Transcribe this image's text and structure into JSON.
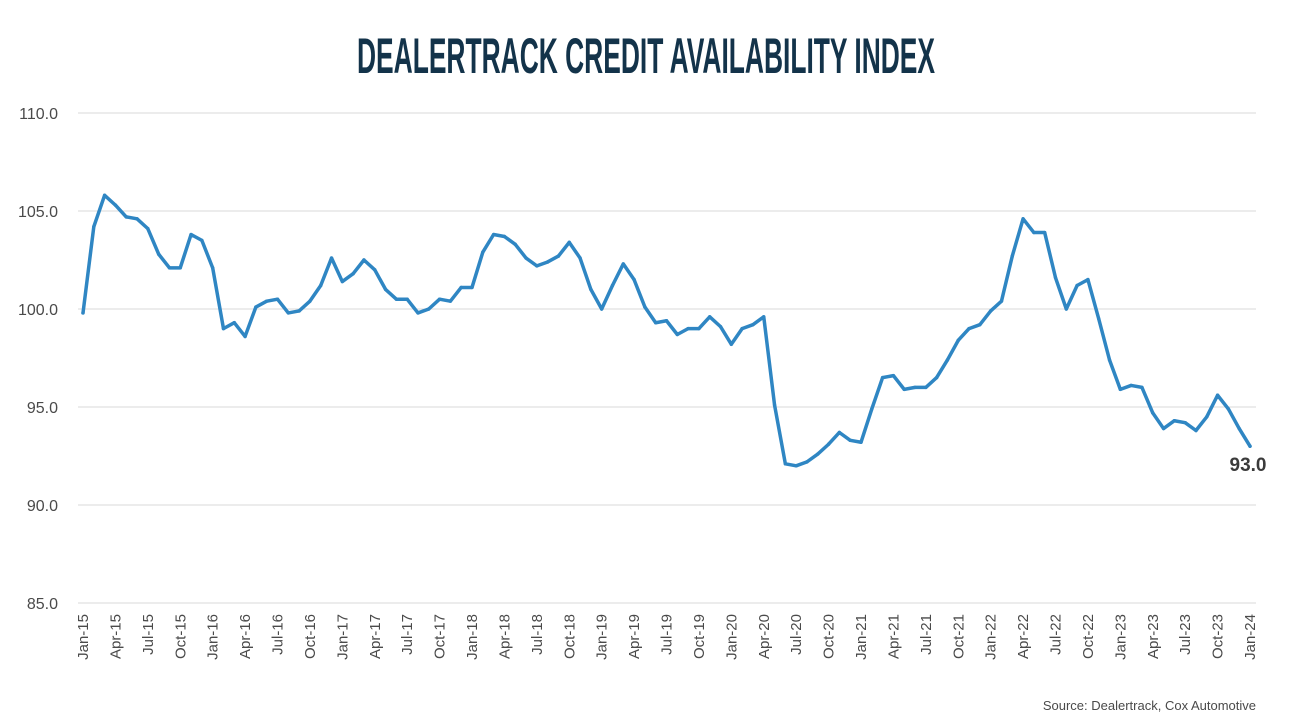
{
  "chart_data": {
    "type": "line",
    "title": "DEALERTRACK CREDIT AVAILABILITY INDEX",
    "source": "Source: Dealertrack, Cox Automotive",
    "end_label": "93.0",
    "ylim": [
      85,
      110
    ],
    "yticks": [
      "85.0",
      "90.0",
      "95.0",
      "100.0",
      "105.0",
      "110.0"
    ],
    "grid": true,
    "line_color": "#2f86c3",
    "x_tick_labels": [
      "Jan-15",
      "Apr-15",
      "Jul-15",
      "Oct-15",
      "Jan-16",
      "Apr-16",
      "Jul-16",
      "Oct-16",
      "Jan-17",
      "Apr-17",
      "Jul-17",
      "Oct-17",
      "Jan-18",
      "Apr-18",
      "Jul-18",
      "Oct-18",
      "Jan-19",
      "Apr-19",
      "Jul-19",
      "Oct-19",
      "Jan-20",
      "Apr-20",
      "Jul-20",
      "Oct-20",
      "Jan-21",
      "Apr-21",
      "Jul-21",
      "Oct-21",
      "Jan-22",
      "Apr-22",
      "Jul-22",
      "Oct-22",
      "Jan-23",
      "Apr-23",
      "Jul-23",
      "Oct-23",
      "Jan-24"
    ],
    "series": [
      {
        "values": [
          99.8,
          104.2,
          105.8,
          105.3,
          104.7,
          104.6,
          104.1,
          102.8,
          102.1,
          102.1,
          103.8,
          103.5,
          102.1,
          99.0,
          99.3,
          98.6,
          100.1,
          100.4,
          100.5,
          99.8,
          99.9,
          100.4,
          101.2,
          102.6,
          101.4,
          101.8,
          102.5,
          102.0,
          101.0,
          100.5,
          100.5,
          99.8,
          100.0,
          100.5,
          100.4,
          101.1,
          101.1,
          102.9,
          103.8,
          103.7,
          103.3,
          102.6,
          102.2,
          102.4,
          102.7,
          103.4,
          102.6,
          101.0,
          100.0,
          101.2,
          102.3,
          101.5,
          100.1,
          99.3,
          99.4,
          98.7,
          99.0,
          99.0,
          99.6,
          99.1,
          98.2,
          99.0,
          99.2,
          99.6,
          95.1,
          92.1,
          92.0,
          92.2,
          92.6,
          93.1,
          93.7,
          93.3,
          93.2,
          94.9,
          96.5,
          96.6,
          95.9,
          96.0,
          96.0,
          96.5,
          97.4,
          98.4,
          99.0,
          99.2,
          99.9,
          100.4,
          102.7,
          104.6,
          103.9,
          103.9,
          101.6,
          100.0,
          101.2,
          101.5,
          99.5,
          97.4,
          95.9,
          96.1,
          96.0,
          94.7,
          93.9,
          94.3,
          94.2,
          93.8,
          94.5,
          95.6,
          94.9,
          93.9,
          93.0
        ]
      }
    ]
  }
}
